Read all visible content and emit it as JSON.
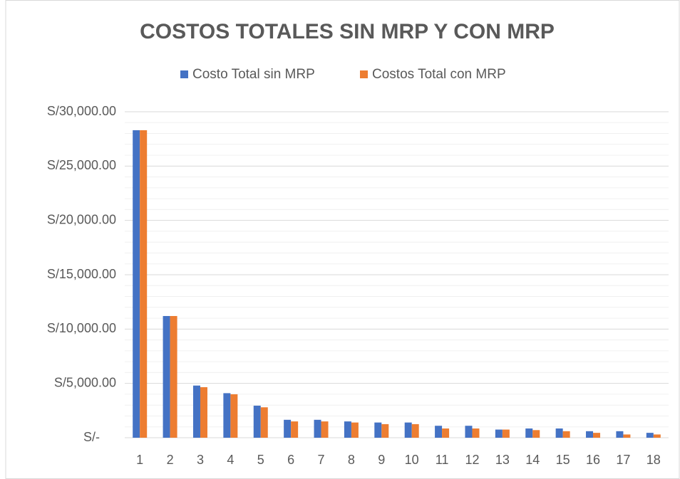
{
  "chart_data": {
    "type": "bar",
    "title": "COSTOS TOTALES SIN MRP Y CON MRP",
    "categories": [
      "1",
      "2",
      "3",
      "4",
      "5",
      "6",
      "7",
      "8",
      "9",
      "10",
      "11",
      "12",
      "13",
      "14",
      "15",
      "16",
      "17",
      "18"
    ],
    "series": [
      {
        "name": "Costo Total sin MRP",
        "color": "#4472c4",
        "values": [
          28300,
          11200,
          4800,
          4100,
          2950,
          1650,
          1650,
          1500,
          1400,
          1400,
          1100,
          1100,
          750,
          850,
          850,
          600,
          600,
          450
        ]
      },
      {
        "name": "Costos Total con MRP",
        "color": "#ed7d31",
        "values": [
          28300,
          11200,
          4650,
          4000,
          2800,
          1500,
          1500,
          1400,
          1250,
          1250,
          850,
          850,
          750,
          700,
          600,
          450,
          300,
          300
        ]
      }
    ],
    "ylim": [
      0,
      30000
    ],
    "yticks": [
      {
        "value": 0,
        "label": "S/-"
      },
      {
        "value": 5000,
        "label": "S/5,000.00"
      },
      {
        "value": 10000,
        "label": "S/10,000.00"
      },
      {
        "value": 15000,
        "label": "S/15,000.00"
      },
      {
        "value": 20000,
        "label": "S/20,000.00"
      },
      {
        "value": 25000,
        "label": "S/25,000.00"
      },
      {
        "value": 30000,
        "label": "S/30,000.00"
      }
    ],
    "minor_yticks": [
      1000,
      2000,
      3000,
      4000,
      6000,
      7000,
      8000,
      9000,
      11000,
      12000,
      13000,
      14000,
      16000,
      17000,
      18000,
      19000,
      21000,
      22000,
      23000,
      24000,
      26000,
      27000,
      28000,
      29000
    ],
    "grid": true,
    "legend": "top"
  }
}
